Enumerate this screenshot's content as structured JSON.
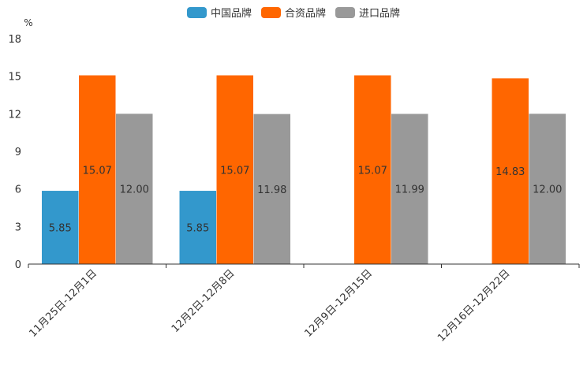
{
  "chart_data": {
    "type": "bar",
    "ylabel": "%",
    "ylim": [
      0,
      18
    ],
    "yticks": [
      0,
      3,
      6,
      9,
      12,
      15,
      18
    ],
    "categories": [
      "11月25日-12月1日",
      "12月2日-12月8日",
      "12月9日-12月15日",
      "12月16日-12月22日"
    ],
    "series": [
      {
        "name": "中国品牌",
        "color": "#3398cc",
        "values": [
          5.85,
          5.85,
          null,
          null
        ],
        "labels": [
          "5.85",
          "5.85",
          "",
          ""
        ]
      },
      {
        "name": "合资品牌",
        "color": "#ff6600",
        "values": [
          15.07,
          15.07,
          15.07,
          14.83
        ],
        "labels": [
          "15.07",
          "15.07",
          "15.07",
          "14.83"
        ]
      },
      {
        "name": "进口品牌",
        "color": "#999999",
        "values": [
          12.0,
          11.98,
          11.99,
          12.0
        ],
        "labels": [
          "12.00",
          "11.98",
          "11.99",
          "12.00"
        ]
      }
    ],
    "legend_position": "top-center"
  }
}
